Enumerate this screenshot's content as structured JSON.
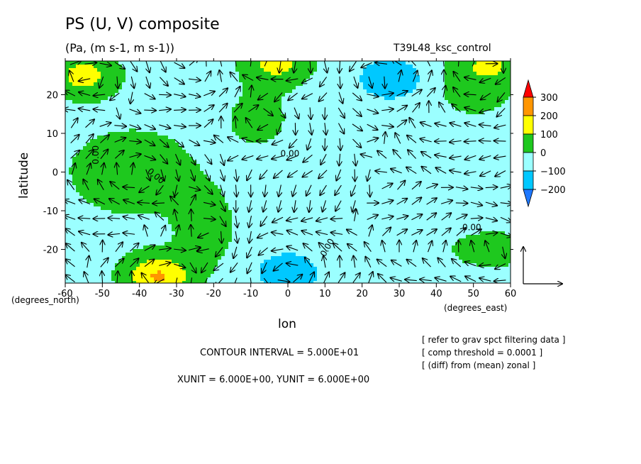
{
  "header": {
    "title": "PS (U, V) composite",
    "subtitle": "(Pa, (m s-1, m s-1))",
    "run_label": "T39L48_ksc_control"
  },
  "footer": {
    "contour_interval": "CONTOUR INTERVAL = 5.000E+01",
    "vector_units": "XUNIT = 6.000E+00, YUNIT = 6.000E+00",
    "notes": [
      "[ refer to grav spct filtering data ]",
      "[ comp threshold = 0.0001 ]",
      "[ (diff) from (mean) zonal ]"
    ]
  },
  "chart_data": {
    "type": "heatmap",
    "overlay": "vector",
    "xlabel": "lon",
    "ylabel": "latitude",
    "x_unit_label": "(degrees_east)",
    "y_unit_label": "(degrees_north)",
    "xlim": [
      -60,
      60
    ],
    "ylim": [
      -28.7,
      28.7
    ],
    "x_ticks": [
      -60,
      -50,
      -40,
      -30,
      -20,
      -10,
      0,
      10,
      20,
      30,
      40,
      50,
      60
    ],
    "y_ticks": [
      -20,
      -10,
      0,
      10,
      20
    ],
    "contour_interval": 50,
    "contour_label": "0.00",
    "colorbar": {
      "levels": [
        -200,
        -100,
        0,
        100,
        200,
        300
      ],
      "colors": [
        "#1e78ff",
        "#00c8ff",
        "#9bffff",
        "#1ec81e",
        "#ffff00",
        "#ff9600",
        "#ff0000"
      ]
    },
    "features": [
      {
        "lon": -35,
        "lat": -27,
        "value": 210
      },
      {
        "lon": 0,
        "lat": -26,
        "value": -170
      },
      {
        "lon": -55,
        "lat": 25,
        "value": 140
      },
      {
        "lon": 28,
        "lat": 24,
        "value": -180
      },
      {
        "lon": -3,
        "lat": 28,
        "value": 130
      },
      {
        "lon": 55,
        "lat": 28,
        "value": 120
      }
    ]
  }
}
